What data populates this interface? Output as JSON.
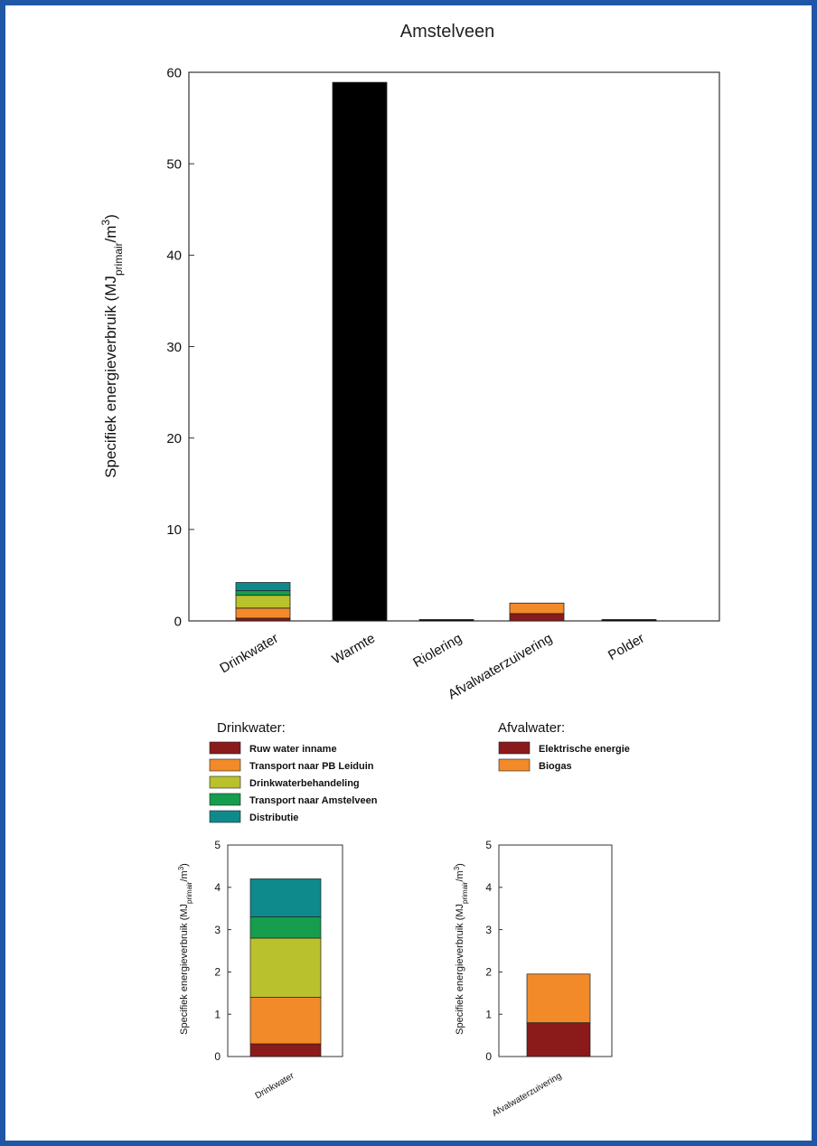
{
  "chart_data": [
    {
      "type": "bar",
      "stacked": true,
      "title": "Amstelveen",
      "ylabel": "Specifiek energieverbruik (MJ",
      "ylabel_sub": "primair",
      "ylabel_rest": "/m",
      "ylabel_sup": "3",
      "ylabel_end": ")",
      "ylim": [
        0,
        60
      ],
      "yticks": [
        0,
        10,
        20,
        30,
        40,
        50,
        60
      ],
      "categories": [
        "Drinkwater",
        "Warmte",
        "Riolering",
        "Afvalwaterzuivering",
        "Polder"
      ],
      "series": [
        {
          "name": "Ruw water inname",
          "color": "#8b1a1a",
          "values": [
            0.3,
            0,
            0,
            0,
            0
          ]
        },
        {
          "name": "Transport naar PB Leiduin",
          "color": "#f28a2a",
          "values": [
            1.1,
            0,
            0,
            0,
            0
          ]
        },
        {
          "name": "Drinkwaterbehandeling",
          "color": "#b9c12c",
          "values": [
            1.4,
            0,
            0,
            0,
            0
          ]
        },
        {
          "name": "Transport naar Amstelveen",
          "color": "#169d4d",
          "values": [
            0.5,
            0,
            0,
            0,
            0
          ]
        },
        {
          "name": "Distributie",
          "color": "#0f8a8c",
          "values": [
            0.9,
            0,
            0,
            0,
            0
          ]
        },
        {
          "name": "Warmte",
          "color": "#000000",
          "values": [
            0,
            58.9,
            0,
            0,
            0
          ]
        },
        {
          "name": "Riolering",
          "color": "#000000",
          "values": [
            0,
            0,
            0.15,
            0,
            0
          ]
        },
        {
          "name": "Elektrische energie",
          "color": "#8b1a1a",
          "values": [
            0,
            0,
            0,
            0.8,
            0
          ]
        },
        {
          "name": "Biogas",
          "color": "#f28a2a",
          "values": [
            0,
            0,
            0,
            1.15,
            0
          ]
        },
        {
          "name": "Polder",
          "color": "#000000",
          "values": [
            0,
            0,
            0,
            0,
            0.15
          ]
        }
      ]
    },
    {
      "type": "bar",
      "stacked": true,
      "ylabel": "Specifiek energieverbruik (MJ",
      "ylabel_sub": "primair",
      "ylabel_rest": "/m",
      "ylabel_sup": "3",
      "ylabel_end": ")",
      "ylim": [
        0,
        5
      ],
      "yticks": [
        0,
        1,
        2,
        3,
        4,
        5
      ],
      "categories": [
        "Drinkwater"
      ],
      "series": [
        {
          "name": "Ruw water inname",
          "color": "#8b1a1a",
          "values": [
            0.3
          ]
        },
        {
          "name": "Transport naar PB Leiduin",
          "color": "#f28a2a",
          "values": [
            1.1
          ]
        },
        {
          "name": "Drinkwaterbehandeling",
          "color": "#b9c12c",
          "values": [
            1.4
          ]
        },
        {
          "name": "Transport naar Amstelveen",
          "color": "#169d4d",
          "values": [
            0.5
          ]
        },
        {
          "name": "Distributie",
          "color": "#0f8a8c",
          "values": [
            0.9
          ]
        }
      ]
    },
    {
      "type": "bar",
      "stacked": true,
      "ylabel": "Specifiek energieverbruik (MJ",
      "ylabel_sub": "primair",
      "ylabel_rest": "/m",
      "ylabel_sup": "3",
      "ylabel_end": ")",
      "ylim": [
        0,
        5
      ],
      "yticks": [
        0,
        1,
        2,
        3,
        4,
        5
      ],
      "categories": [
        "Afvalwaterzuivering"
      ],
      "series": [
        {
          "name": "Elektrische energie",
          "color": "#8b1a1a",
          "values": [
            0.8
          ]
        },
        {
          "name": "Biogas",
          "color": "#f28a2a",
          "values": [
            1.15
          ]
        }
      ]
    }
  ],
  "legends": [
    {
      "title": "Drinkwater:",
      "items": [
        {
          "label": "Ruw water inname",
          "color": "#8b1a1a"
        },
        {
          "label": "Transport naar PB Leiduin",
          "color": "#f28a2a"
        },
        {
          "label": "Drinkwaterbehandeling",
          "color": "#b9c12c"
        },
        {
          "label": "Transport naar Amstelveen",
          "color": "#169d4d"
        },
        {
          "label": "Distributie",
          "color": "#0f8a8c"
        }
      ]
    },
    {
      "title": "Afvalwater:",
      "items": [
        {
          "label": "Elektrische energie",
          "color": "#8b1a1a"
        },
        {
          "label": "Biogas",
          "color": "#f28a2a"
        }
      ]
    }
  ],
  "colors": {
    "frame": "#1f56a6"
  }
}
